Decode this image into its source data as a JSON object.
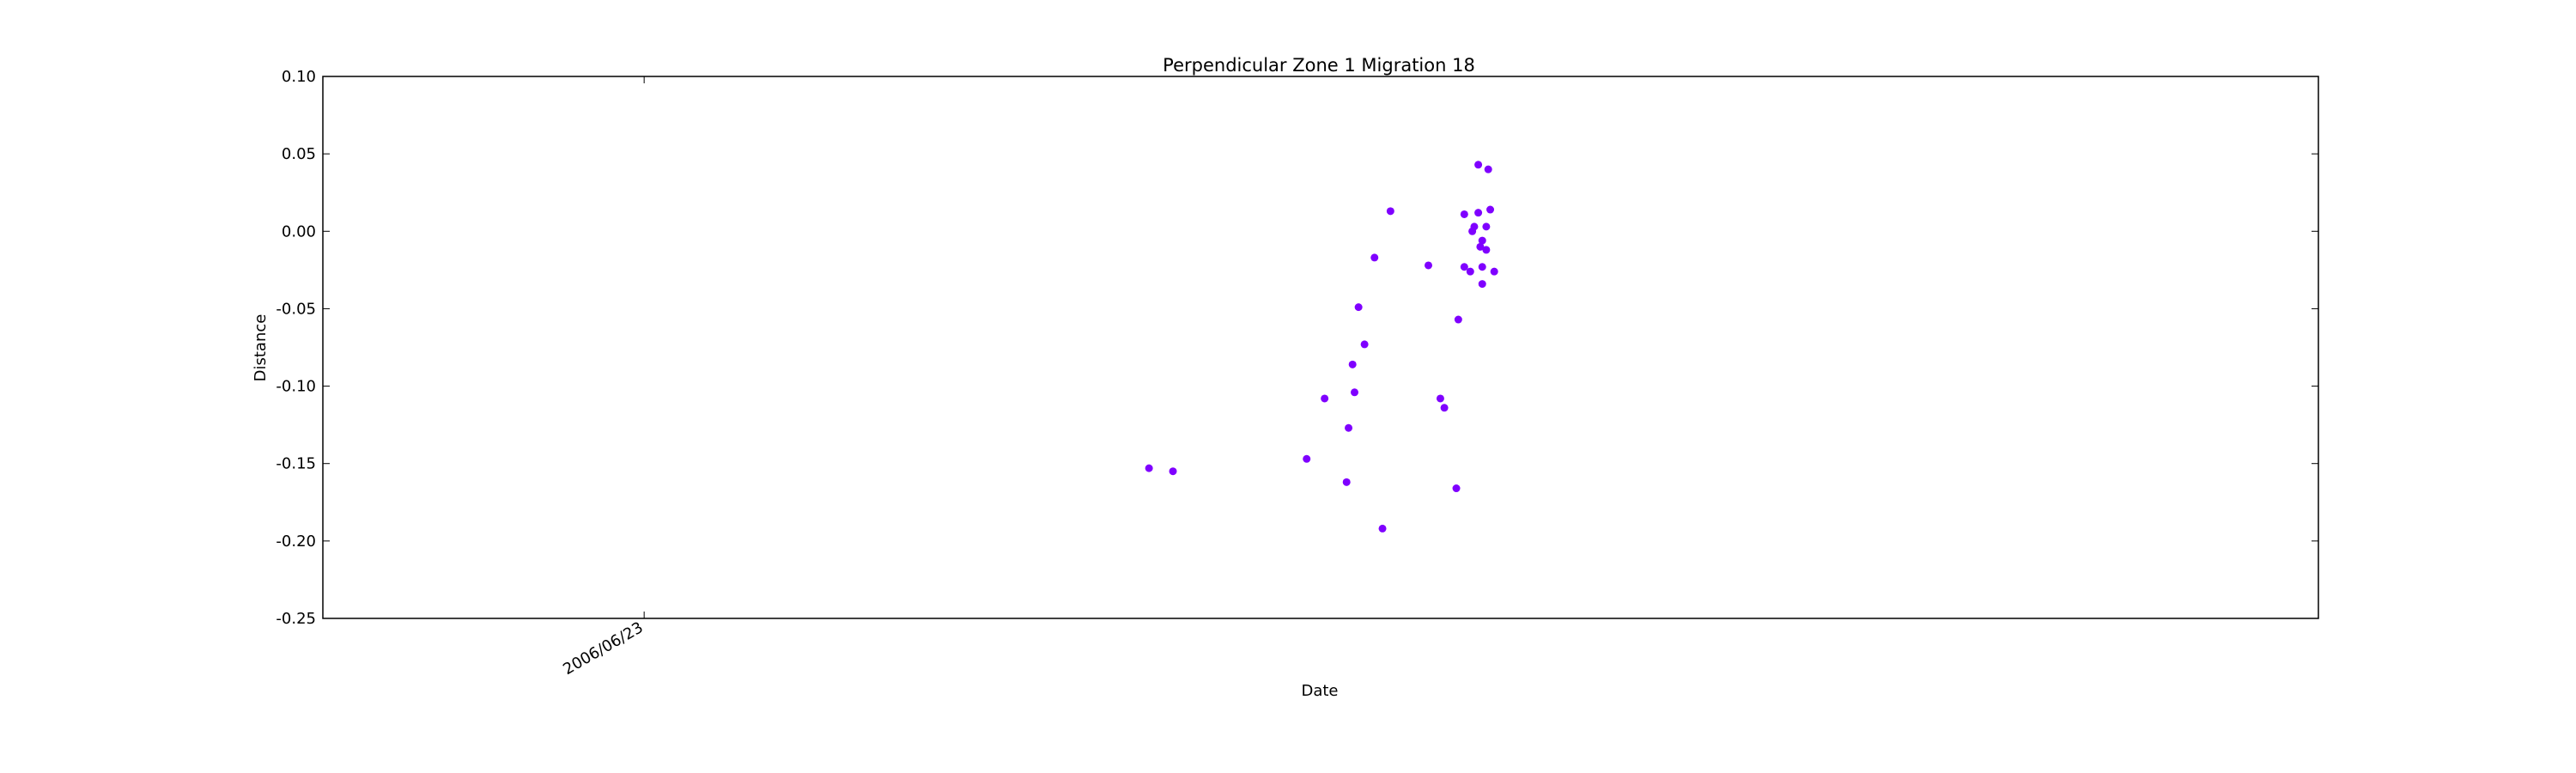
{
  "chart_data": {
    "type": "scatter",
    "title": "Perpendicular Zone 1 Migration 18",
    "xlabel": "Date",
    "ylabel": "Distance",
    "ylim": [
      -0.25,
      0.1
    ],
    "yticks": [
      "0.10",
      "0.05",
      "0.00",
      "-0.05",
      "-0.10",
      "-0.15",
      "-0.20",
      "-0.25"
    ],
    "xticks": [
      {
        "label": "2006/06/23",
        "x": 0.161
      }
    ],
    "xlim": [
      0,
      1
    ],
    "grid": false,
    "color": "#7f00ff",
    "series": [
      {
        "points": [
          {
            "x": 0.414,
            "y": -0.153
          },
          {
            "x": 0.426,
            "y": -0.155
          },
          {
            "x": 0.493,
            "y": -0.147
          },
          {
            "x": 0.502,
            "y": -0.108
          },
          {
            "x": 0.513,
            "y": -0.162
          },
          {
            "x": 0.514,
            "y": -0.127
          },
          {
            "x": 0.516,
            "y": -0.086
          },
          {
            "x": 0.517,
            "y": -0.104
          },
          {
            "x": 0.519,
            "y": -0.049
          },
          {
            "x": 0.522,
            "y": -0.073
          },
          {
            "x": 0.527,
            "y": -0.017
          },
          {
            "x": 0.531,
            "y": -0.192
          },
          {
            "x": 0.535,
            "y": 0.013
          },
          {
            "x": 0.554,
            "y": -0.022
          },
          {
            "x": 0.56,
            "y": -0.108
          },
          {
            "x": 0.562,
            "y": -0.114
          },
          {
            "x": 0.568,
            "y": -0.166
          },
          {
            "x": 0.569,
            "y": -0.057
          },
          {
            "x": 0.572,
            "y": 0.011
          },
          {
            "x": 0.572,
            "y": -0.023
          },
          {
            "x": 0.575,
            "y": -0.026
          },
          {
            "x": 0.576,
            "y": 0.0
          },
          {
            "x": 0.577,
            "y": 0.003
          },
          {
            "x": 0.579,
            "y": 0.043
          },
          {
            "x": 0.579,
            "y": 0.012
          },
          {
            "x": 0.58,
            "y": -0.01
          },
          {
            "x": 0.581,
            "y": -0.006
          },
          {
            "x": 0.581,
            "y": -0.034
          },
          {
            "x": 0.581,
            "y": -0.023
          },
          {
            "x": 0.583,
            "y": -0.012
          },
          {
            "x": 0.583,
            "y": 0.003
          },
          {
            "x": 0.584,
            "y": 0.04
          },
          {
            "x": 0.585,
            "y": 0.014
          },
          {
            "x": 0.587,
            "y": -0.026
          }
        ]
      }
    ]
  }
}
